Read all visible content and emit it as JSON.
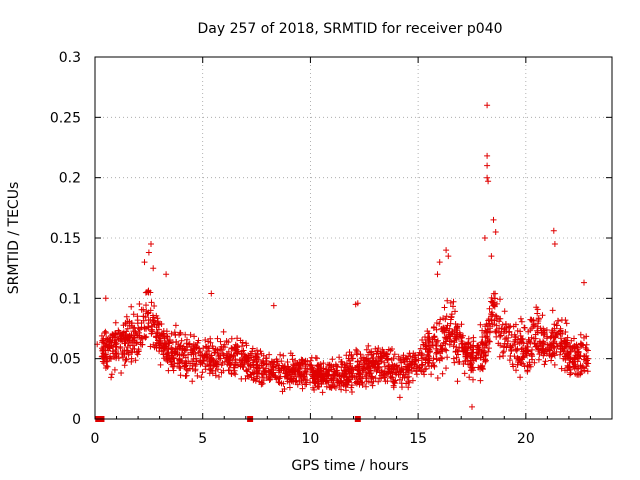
{
  "chart_data": {
    "type": "scatter",
    "title": "Day 257 of 2018, SRMTID for receiver p040",
    "xlabel": "GPS time / hours",
    "ylabel": "SRMTID / TECUs",
    "xlim": [
      0,
      24
    ],
    "ylim": [
      0,
      0.3
    ],
    "x_ticks": [
      0,
      5,
      10,
      15,
      20
    ],
    "x_tick_labels": [
      "0",
      "5",
      "10",
      "15",
      "20"
    ],
    "y_ticks": [
      0,
      0.05,
      0.1,
      0.15,
      0.2,
      0.25,
      0.3
    ],
    "y_tick_labels": [
      "0",
      "0.05",
      "0.1",
      "0.15",
      "0.2",
      "0.25",
      "0.3"
    ],
    "grid": true,
    "legend": "none",
    "marker": "plus",
    "color": "#e00000",
    "density_profile": {
      "x": [
        0,
        0.5,
        1,
        1.5,
        2,
        2.5,
        3,
        3.5,
        4,
        5,
        6,
        7,
        8,
        9,
        10,
        11,
        12,
        13,
        14,
        15,
        15.5,
        16,
        16.5,
        17,
        17.5,
        18,
        18.5,
        19,
        19.5,
        20,
        20.5,
        21,
        21.5,
        22,
        22.5,
        23
      ],
      "center": [
        0.055,
        0.06,
        0.06,
        0.065,
        0.07,
        0.09,
        0.065,
        0.055,
        0.055,
        0.05,
        0.05,
        0.048,
        0.04,
        0.04,
        0.038,
        0.035,
        0.038,
        0.045,
        0.04,
        0.045,
        0.06,
        0.06,
        0.075,
        0.06,
        0.05,
        0.06,
        0.09,
        0.07,
        0.06,
        0.055,
        0.07,
        0.06,
        0.07,
        0.055,
        0.05,
        0.05
      ],
      "spread": [
        0.02,
        0.025,
        0.025,
        0.025,
        0.03,
        0.03,
        0.025,
        0.022,
        0.022,
        0.02,
        0.02,
        0.02,
        0.018,
        0.018,
        0.015,
        0.015,
        0.02,
        0.02,
        0.02,
        0.02,
        0.025,
        0.03,
        0.035,
        0.025,
        0.02,
        0.025,
        0.035,
        0.03,
        0.025,
        0.025,
        0.03,
        0.025,
        0.03,
        0.025,
        0.02,
        0.02
      ]
    },
    "outliers": [
      {
        "x": 18.2,
        "y": 0.26
      },
      {
        "x": 18.2,
        "y": 0.218
      },
      {
        "x": 18.2,
        "y": 0.21
      },
      {
        "x": 18.2,
        "y": 0.2
      },
      {
        "x": 18.25,
        "y": 0.197
      },
      {
        "x": 18.5,
        "y": 0.165
      },
      {
        "x": 18.6,
        "y": 0.155
      },
      {
        "x": 18.1,
        "y": 0.15
      },
      {
        "x": 18.4,
        "y": 0.135
      },
      {
        "x": 21.3,
        "y": 0.156
      },
      {
        "x": 21.35,
        "y": 0.145
      },
      {
        "x": 2.6,
        "y": 0.145
      },
      {
        "x": 2.5,
        "y": 0.138
      },
      {
        "x": 2.7,
        "y": 0.125
      },
      {
        "x": 2.3,
        "y": 0.13
      },
      {
        "x": 16.3,
        "y": 0.14
      },
      {
        "x": 16.4,
        "y": 0.135
      },
      {
        "x": 16.0,
        "y": 0.13
      },
      {
        "x": 15.9,
        "y": 0.12
      },
      {
        "x": 3.3,
        "y": 0.12
      },
      {
        "x": 22.7,
        "y": 0.113
      },
      {
        "x": 5.4,
        "y": 0.104
      },
      {
        "x": 12.1,
        "y": 0.095
      },
      {
        "x": 12.2,
        "y": 0.096
      },
      {
        "x": 8.3,
        "y": 0.094
      },
      {
        "x": 0.5,
        "y": 0.1
      },
      {
        "x": 0.1,
        "y": 0.062
      },
      {
        "x": 17.5,
        "y": 0.01
      }
    ],
    "zero_markers_x": [
      0.15,
      0.3,
      7.2,
      12.2
    ]
  }
}
